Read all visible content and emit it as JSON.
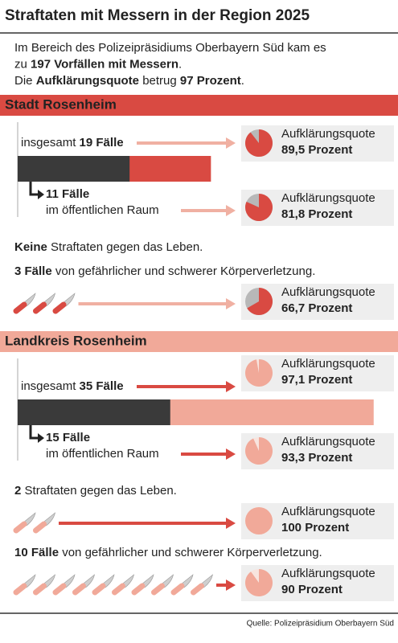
{
  "title": "Straftaten mit Messern in der Region 2025",
  "intro": [
    [
      {
        "text": "Im Bereich des Polizeipräsidiums Oberbayern Süd kam es"
      }
    ],
    [
      {
        "text": "zu"
      },
      {
        "text": "197 Vorfällen mit Messern",
        "bold": true
      },
      {
        "text": "."
      }
    ],
    [
      {
        "text": "Die"
      },
      {
        "text": "Aufklärungsquote",
        "bold": true
      },
      {
        "text": "betrug"
      },
      {
        "text": "97 Prozent",
        "bold": true
      },
      {
        "text": "."
      }
    ]
  ],
  "quote_label": "Aufklärungsquote",
  "sections": [
    {
      "name": "Stadt Rosenheim",
      "band_color": "#d94a42",
      "band_text_color": "#ffffff",
      "bar_color": "#d94a42",
      "arrow_color": "#f0b0a2",
      "pie_color": "#d94a42",
      "pie_rest_color": "#b8b8b8",
      "total": {
        "prefix": "insgesamt",
        "value": 19,
        "label": "19 Fälle"
      },
      "total_quote": {
        "value": 89.5,
        "label": "89,5 Prozent"
      },
      "public": {
        "value": 11,
        "label": "11 Fälle",
        "text": "im öffentlichen Raum"
      },
      "public_quote": {
        "value": 81.8,
        "label": "81,8 Prozent"
      },
      "items": [
        {
          "lead": "Keine",
          "text": "Straftaten gegen das Leben."
        },
        {
          "count": {
            "value": 3,
            "label": "3 Fälle"
          },
          "text": "von gefährlicher und schwerer Körperverletzung.",
          "quote": {
            "value": 66.7,
            "label": "66,7 Prozent"
          }
        }
      ]
    },
    {
      "name": "Landkreis Rosenheim",
      "band_color": "#f1a999",
      "band_text_color": "#222222",
      "bar_color": "#f1a999",
      "arrow_color": "#d94a42",
      "pie_color": "#f1a999",
      "pie_rest_color": "#f8e4de",
      "total": {
        "prefix": "insgesamt",
        "value": 35,
        "label": "35 Fälle"
      },
      "total_quote": {
        "value": 97.1,
        "label": "97,1 Prozent"
      },
      "public": {
        "value": 15,
        "label": "15 Fälle",
        "text": "im öffentlichen Raum"
      },
      "public_quote": {
        "value": 93.3,
        "label": "93,3 Prozent"
      },
      "items": [
        {
          "count": {
            "value": 2,
            "label": "2"
          },
          "text": "Straftaten gegen das Leben.",
          "quote": {
            "value": 100,
            "label": "100 Prozent"
          }
        },
        {
          "count": {
            "value": 10,
            "label": "10 Fälle"
          },
          "text": "von gefährlicher und schwerer Körperverletzung.",
          "quote": {
            "value": 90,
            "label": "90 Prozent"
          }
        }
      ]
    }
  ],
  "source": "Quelle: Polizeipräsidium Oberbayern Süd"
}
